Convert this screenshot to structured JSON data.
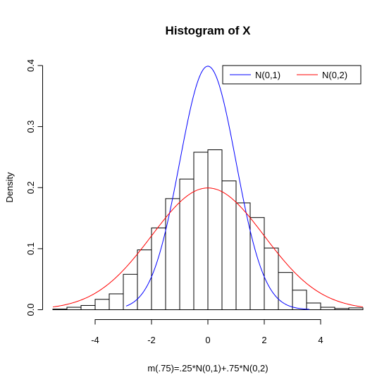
{
  "chart_data": {
    "type": "histogram",
    "title": "Histogram of X",
    "xlabel": "m(.75)=.25*N(0,1)+.75*N(0,2)",
    "ylabel": "Density",
    "xlim": [
      -5.5,
      5.5
    ],
    "ylim": [
      0,
      0.4
    ],
    "x_ticks": [
      -4,
      -2,
      0,
      2,
      4
    ],
    "x_tick_labels": [
      "-4",
      "-2",
      "0",
      "2",
      "4"
    ],
    "y_ticks": [
      0.0,
      0.1,
      0.2,
      0.3,
      0.4
    ],
    "y_tick_labels": [
      "0.0",
      "0.1",
      "0.2",
      "0.3",
      "0.4"
    ],
    "bin_width": 0.5,
    "bins": [
      {
        "start": -5.5,
        "density": 0.001
      },
      {
        "start": -5.0,
        "density": 0.004
      },
      {
        "start": -4.5,
        "density": 0.007
      },
      {
        "start": -4.0,
        "density": 0.017
      },
      {
        "start": -3.5,
        "density": 0.026
      },
      {
        "start": -3.0,
        "density": 0.058
      },
      {
        "start": -2.5,
        "density": 0.098
      },
      {
        "start": -2.0,
        "density": 0.134
      },
      {
        "start": -1.5,
        "density": 0.182
      },
      {
        "start": -1.0,
        "density": 0.214
      },
      {
        "start": -0.5,
        "density": 0.258
      },
      {
        "start": 0.0,
        "density": 0.262
      },
      {
        "start": 0.5,
        "density": 0.211
      },
      {
        "start": 1.0,
        "density": 0.175
      },
      {
        "start": 1.5,
        "density": 0.151
      },
      {
        "start": 2.0,
        "density": 0.101
      },
      {
        "start": 2.5,
        "density": 0.061
      },
      {
        "start": 3.0,
        "density": 0.032
      },
      {
        "start": 3.5,
        "density": 0.011
      },
      {
        "start": 4.0,
        "density": 0.004
      },
      {
        "start": 4.5,
        "density": 0.002
      },
      {
        "start": 5.0,
        "density": 0.003
      }
    ],
    "curves": [
      {
        "name": "N(0,1)",
        "mean": 0,
        "sd": 1,
        "color": "#0000ff",
        "x_range": [
          -2.9,
          3.6
        ]
      },
      {
        "name": "N(0,2)",
        "mean": 0,
        "sd": 2,
        "color": "#ff0000",
        "x_range": [
          -5.5,
          5.5
        ]
      }
    ],
    "legend": {
      "position": "top-right",
      "orientation": "horizontal",
      "entries": [
        "N(0,1)",
        "N(0,2)"
      ]
    }
  }
}
